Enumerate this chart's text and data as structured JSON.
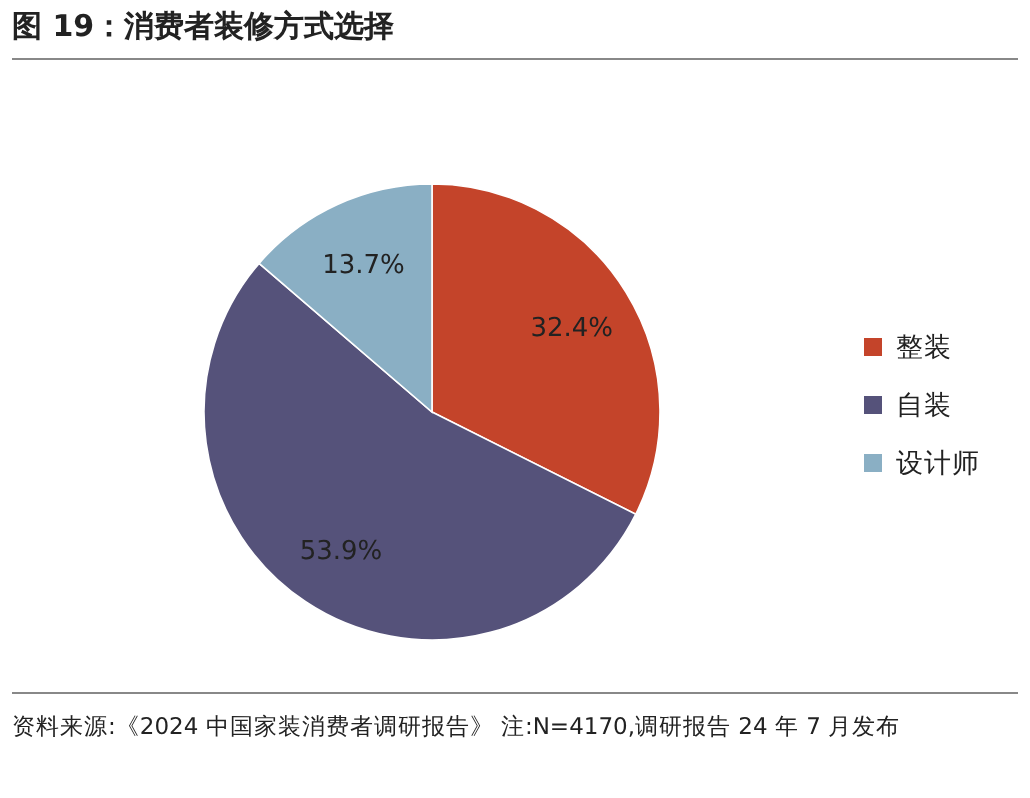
{
  "chart_data": {
    "type": "pie",
    "title": "图 19：消费者装修方式选择",
    "categories": [
      "整装",
      "自装",
      "设计师"
    ],
    "values": [
      32.4,
      53.9,
      13.7
    ],
    "value_labels": [
      "32.4%",
      "53.9%",
      "13.7%"
    ],
    "colors": [
      "#c4442a",
      "#55527a",
      "#8aafc4"
    ],
    "legend": "right",
    "annotations": [
      "资料来源:《2024 中国家装消费者调研报告》 注:N=4170,调研报告 24 年 7 月发布"
    ]
  }
}
